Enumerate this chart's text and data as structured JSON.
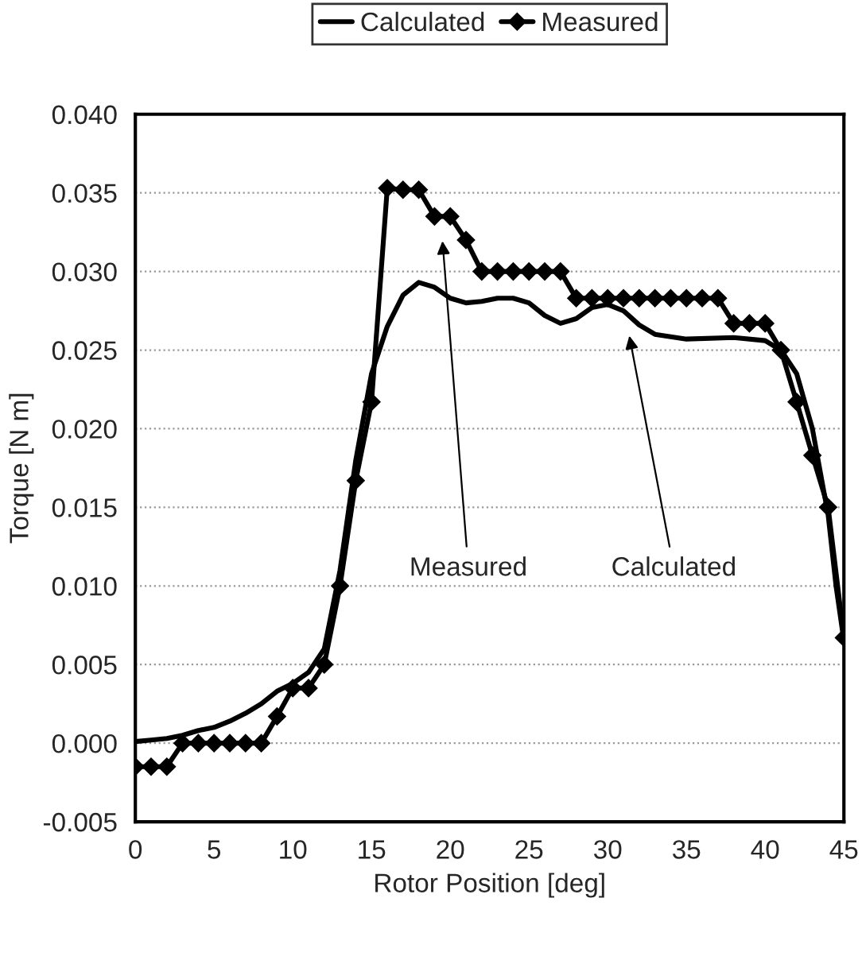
{
  "chart_data": {
    "type": "line",
    "xlabel": "Rotor Position [deg]",
    "ylabel": "Torque [N m]",
    "series": [
      {
        "name": "Calculated",
        "color": "#000000",
        "marker": "none",
        "x": [
          0,
          1,
          2,
          3,
          4,
          5,
          6,
          7,
          8,
          9,
          10,
          11,
          12,
          13,
          14,
          15,
          16,
          17,
          18,
          19,
          20,
          21,
          22,
          23,
          24,
          25,
          26,
          27,
          28,
          29,
          30,
          31,
          32,
          33,
          35,
          38,
          40,
          41,
          42,
          43,
          44,
          44.5,
          45
        ],
        "values": [
          0.0001,
          0.0002,
          0.0003,
          0.0005,
          0.0008,
          0.001,
          0.0014,
          0.0019,
          0.0025,
          0.0033,
          0.0038,
          0.0045,
          0.006,
          0.011,
          0.018,
          0.0235,
          0.0265,
          0.0285,
          0.0293,
          0.029,
          0.0283,
          0.028,
          0.0281,
          0.0283,
          0.0283,
          0.028,
          0.0272,
          0.0267,
          0.027,
          0.0277,
          0.0279,
          0.0275,
          0.0266,
          0.026,
          0.0257,
          0.0258,
          0.0256,
          0.025,
          0.0235,
          0.02,
          0.0145,
          0.01,
          0.0065
        ]
      },
      {
        "name": "Measured",
        "color": "#000000",
        "marker": "diamond",
        "x": [
          0,
          1,
          2,
          3,
          4,
          5,
          6,
          7,
          8,
          9,
          10,
          11,
          12,
          13,
          14,
          15,
          16,
          17,
          18,
          19,
          20,
          21,
          22,
          23,
          24,
          25,
          26,
          27,
          28,
          29,
          30,
          31,
          32,
          33,
          34,
          35,
          36,
          37,
          38,
          39,
          40,
          41,
          42,
          43,
          44,
          45
        ],
        "values": [
          -0.0015,
          -0.0015,
          -0.0015,
          0,
          0,
          0,
          0,
          0,
          0,
          0.0017,
          0.0035,
          0.0035,
          0.005,
          0.01,
          0.0167,
          0.0217,
          0.0353,
          0.0352,
          0.0352,
          0.0335,
          0.0335,
          0.032,
          0.03,
          0.03,
          0.03,
          0.03,
          0.03,
          0.03,
          0.0283,
          0.0283,
          0.0283,
          0.0283,
          0.0283,
          0.0283,
          0.0283,
          0.0283,
          0.0283,
          0.0283,
          0.0267,
          0.0267,
          0.0267,
          0.025,
          0.0217,
          0.0183,
          0.015,
          0.0067
        ]
      }
    ],
    "xlim": [
      0,
      45
    ],
    "xticks": [
      0,
      5,
      10,
      15,
      20,
      25,
      30,
      35,
      40,
      45
    ],
    "ylim": [
      -0.005,
      0.04
    ],
    "yticks": [
      {
        "value": -0.005,
        "label": "-0.005"
      },
      {
        "value": 0,
        "label": "0.000"
      },
      {
        "value": 0.005,
        "label": "0.005"
      },
      {
        "value": 0.01,
        "label": "0.010"
      },
      {
        "value": 0.015,
        "label": "0.015"
      },
      {
        "value": 0.02,
        "label": "0.020"
      },
      {
        "value": 0.025,
        "label": "0.025"
      },
      {
        "value": 0.03,
        "label": "0.030"
      },
      {
        "value": 0.035,
        "label": "0.035"
      },
      {
        "value": 0.04,
        "label": "0.040"
      }
    ],
    "grid": "y",
    "legend": "top",
    "line_style": "solid",
    "annotations": [
      "Measured",
      "Calculated"
    ]
  }
}
